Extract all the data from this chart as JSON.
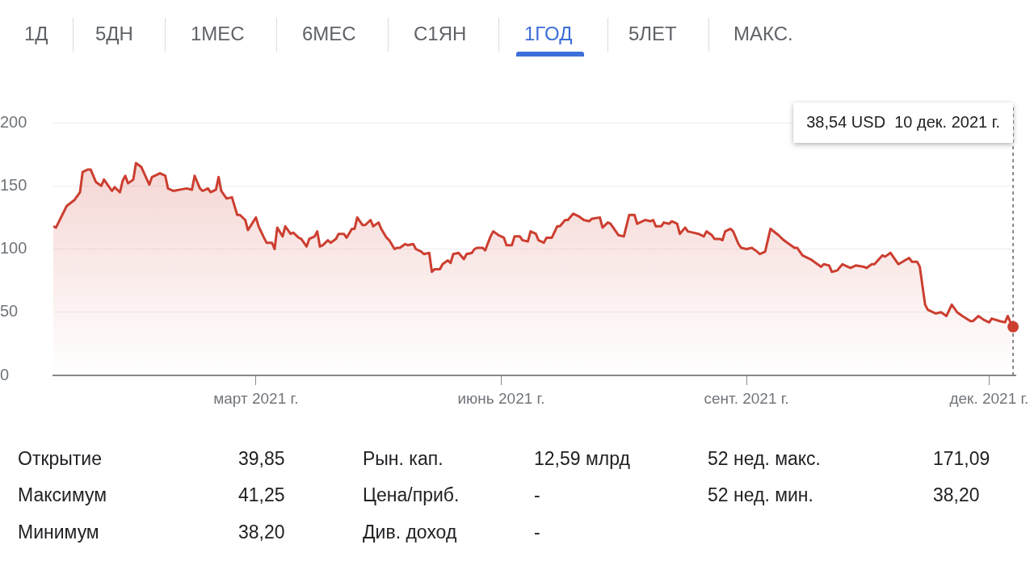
{
  "chart_data": {
    "type": "area",
    "color": "#cc3e30",
    "marker": "none",
    "grid": "y",
    "x": [
      "2020-12-15",
      "2020-12-16",
      "2020-12-20",
      "2020-12-23",
      "2020-12-25",
      "2020-12-26",
      "2020-12-28",
      "2020-12-29",
      "2020-12-31",
      "2021-01-02",
      "2021-01-03",
      "2021-01-04",
      "2021-01-06",
      "2021-01-07",
      "2021-01-09",
      "2021-01-10",
      "2021-01-11",
      "2021-01-12",
      "2021-01-14",
      "2021-01-15",
      "2021-01-17",
      "2021-01-20",
      "2021-01-21",
      "2021-01-24",
      "2021-01-26",
      "2021-01-27",
      "2021-01-29",
      "2021-02-03",
      "2021-02-05",
      "2021-02-06",
      "2021-02-08",
      "2021-02-09",
      "2021-02-11",
      "2021-02-12",
      "2021-02-14",
      "2021-02-15",
      "2021-02-16",
      "2021-02-18",
      "2021-02-20",
      "2021-02-22",
      "2021-02-23",
      "2021-02-25",
      "2021-02-26",
      "2021-03-01",
      "2021-03-02",
      "2021-03-04",
      "2021-03-05",
      "2021-03-07",
      "2021-03-08",
      "2021-03-09",
      "2021-03-11",
      "2021-03-12",
      "2021-03-14",
      "2021-03-15",
      "2021-03-17",
      "2021-03-18",
      "2021-03-20",
      "2021-03-21",
      "2021-03-23",
      "2021-03-24",
      "2021-03-25",
      "2021-03-26",
      "2021-03-28",
      "2021-03-29",
      "2021-03-31",
      "2021-04-01",
      "2021-04-03",
      "2021-04-04",
      "2021-04-06",
      "2021-04-07",
      "2021-04-08",
      "2021-04-10",
      "2021-04-11",
      "2021-04-13",
      "2021-04-14",
      "2021-04-16",
      "2021-04-17",
      "2021-04-19",
      "2021-04-20",
      "2021-04-22",
      "2021-04-23",
      "2021-04-24",
      "2021-04-26",
      "2021-04-27",
      "2021-04-29",
      "2021-04-30",
      "2021-05-02",
      "2021-05-03",
      "2021-05-05",
      "2021-05-06",
      "2021-05-07",
      "2021-05-09",
      "2021-05-10",
      "2021-05-12",
      "2021-05-13",
      "2021-05-14",
      "2021-05-16",
      "2021-05-18",
      "2021-05-19",
      "2021-05-21",
      "2021-05-22",
      "2021-05-23",
      "2021-05-25",
      "2021-05-26",
      "2021-05-28",
      "2021-05-29",
      "2021-05-31",
      "2021-06-02",
      "2021-06-03",
      "2021-06-05",
      "2021-06-06",
      "2021-06-08",
      "2021-06-09",
      "2021-06-11",
      "2021-06-12",
      "2021-06-14",
      "2021-06-15",
      "2021-06-17",
      "2021-06-18",
      "2021-06-20",
      "2021-06-22",
      "2021-06-23",
      "2021-06-25",
      "2021-06-26",
      "2021-06-28",
      "2021-06-30",
      "2021-07-02",
      "2021-07-04",
      "2021-07-05",
      "2021-07-08",
      "2021-07-09",
      "2021-07-11",
      "2021-07-12",
      "2021-07-14",
      "2021-07-15",
      "2021-07-17",
      "2021-07-19",
      "2021-07-21",
      "2021-07-22",
      "2021-07-25",
      "2021-07-27",
      "2021-07-28",
      "2021-07-29",
      "2021-07-31",
      "2021-08-01",
      "2021-08-03",
      "2021-08-04",
      "2021-08-06",
      "2021-08-07",
      "2021-08-09",
      "2021-08-10",
      "2021-08-12",
      "2021-08-14",
      "2021-08-16",
      "2021-08-17",
      "2021-08-19",
      "2021-08-20",
      "2021-08-22",
      "2021-08-23",
      "2021-08-24",
      "2021-08-26",
      "2021-08-27",
      "2021-08-29",
      "2021-08-30",
      "2021-09-01",
      "2021-09-03",
      "2021-09-05",
      "2021-09-06",
      "2021-09-08",
      "2021-09-10",
      "2021-09-13",
      "2021-09-15",
      "2021-09-17",
      "2021-09-19",
      "2021-09-20",
      "2021-09-22",
      "2021-09-25",
      "2021-09-29",
      "2021-09-30",
      "2021-10-02",
      "2021-10-03",
      "2021-10-05",
      "2021-10-07",
      "2021-10-10",
      "2021-10-12",
      "2021-10-15",
      "2021-10-16",
      "2021-10-18",
      "2021-10-19",
      "2021-10-22",
      "2021-10-23",
      "2021-10-25",
      "2021-10-28",
      "2021-11-01",
      "2021-11-02",
      "2021-11-04",
      "2021-11-05",
      "2021-11-07",
      "2021-11-08",
      "2021-11-11",
      "2021-11-13",
      "2021-11-15",
      "2021-11-17",
      "2021-11-19",
      "2021-11-21",
      "2021-11-24",
      "2021-11-25",
      "2021-11-27",
      "2021-11-29",
      "2021-12-01",
      "2021-12-02",
      "2021-12-05",
      "2021-12-07",
      "2021-12-08",
      "2021-12-09",
      "2021-12-10"
    ],
    "values": [
      118,
      117,
      134,
      139,
      145,
      161,
      163,
      163,
      153,
      150,
      155,
      152,
      146,
      149,
      145,
      154,
      158,
      152,
      155,
      168,
      165,
      151,
      157,
      160,
      158,
      148,
      146,
      148,
      147,
      158,
      148,
      146,
      148,
      145,
      147,
      157,
      146,
      140,
      141,
      127,
      127,
      123,
      115,
      125,
      118,
      109,
      105,
      105,
      100,
      117,
      110,
      118,
      112,
      113,
      109,
      108,
      102,
      108,
      110,
      114,
      102,
      103,
      107,
      105,
      108,
      112,
      112,
      109,
      116,
      116,
      125,
      119,
      119,
      123,
      118,
      121,
      116,
      109,
      107,
      100,
      101,
      101,
      104,
      103,
      104,
      100,
      98,
      96,
      97,
      82,
      84,
      84,
      88,
      91,
      89,
      96,
      97,
      92,
      96,
      97,
      100,
      101,
      101,
      99,
      110,
      114,
      111,
      109,
      103,
      103,
      110,
      110,
      107,
      106,
      114,
      112,
      107,
      105,
      109,
      109,
      118,
      118,
      123,
      123,
      128,
      126,
      123,
      122,
      124,
      125,
      117,
      121,
      120,
      114,
      111,
      110,
      127,
      127,
      120,
      123,
      122,
      123,
      118,
      118,
      121,
      120,
      122,
      120,
      112,
      117,
      114,
      113,
      112,
      110,
      114,
      111,
      108,
      108,
      107,
      114,
      116,
      114,
      104,
      101,
      100,
      101,
      98,
      96,
      98,
      116,
      111,
      107,
      104,
      101,
      101,
      95,
      92,
      86,
      88,
      87,
      82,
      83,
      88,
      85,
      87,
      86,
      85,
      88,
      88,
      95,
      94,
      97,
      88,
      93,
      90,
      90,
      86,
      56,
      52,
      49,
      50,
      47,
      56,
      50,
      47,
      43,
      43,
      47,
      44,
      42,
      45,
      43,
      42,
      47,
      42,
      38.54
    ],
    "xlim": [
      "2020-12-15",
      "2021-12-11"
    ],
    "xticks": [
      {
        "value": "2021-03-01",
        "label": "март 2021 г."
      },
      {
        "value": "2021-06-01",
        "label": "июнь 2021 г."
      },
      {
        "value": "2021-09-01",
        "label": "сент. 2021 г."
      },
      {
        "value": "2021-12-01",
        "label": "дек. 2021 г."
      }
    ],
    "ylim": [
      0,
      200
    ],
    "yticks": [
      0,
      50,
      100,
      150,
      200
    ],
    "ref_lines": [
      {
        "axis": "x",
        "value": "2021-12-10",
        "color": "#666666",
        "line_style": "dashed"
      }
    ],
    "annotations": [
      "38,54 USD  10 дек. 2021 г.",
      "1Д",
      "5ДН",
      "1МЕС",
      "6МЕС",
      "С1ЯН",
      "1ГОД",
      "5ЛЕТ",
      "МАКС.",
      "Открытие",
      "39,85",
      "Рын. кап.",
      "12,59 млрд",
      "52 нед. макс.",
      "171,09",
      "Максимум",
      "41,25",
      "Цена/приб.",
      "-",
      "52 нед. мин.",
      "38,20",
      "Минимум",
      "38,20",
      "Див. доход",
      "-"
    ]
  }
}
